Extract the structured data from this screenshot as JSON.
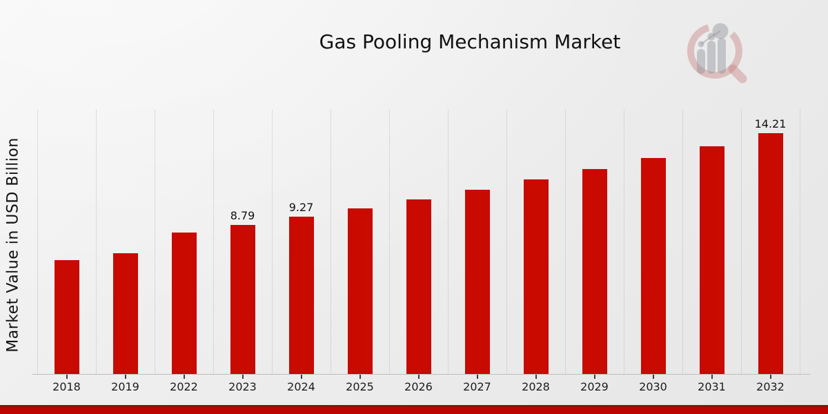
{
  "title": "Gas Pooling Mechanism Market",
  "y_axis_label": "Market Value in USD Billion",
  "watermark": {
    "icon": "magnifier-bar-chart-logo"
  },
  "colors": {
    "bar": "#c80a01",
    "footer_bar": "#bc0400",
    "footer_accent_line": "#8e1009",
    "background": "#ececec",
    "gridline": "#c3c3c3",
    "logo_ring_pink": "#d9b4b4",
    "logo_gray": "#b9babf"
  },
  "chart_data": {
    "type": "bar",
    "title": "Gas Pooling Mechanism Market",
    "xlabel": "",
    "ylabel": "Market Value in USD Billion",
    "categories": [
      "2018",
      "2019",
      "2022",
      "2023",
      "2024",
      "2025",
      "2026",
      "2027",
      "2028",
      "2029",
      "2030",
      "2031",
      "2032"
    ],
    "values": [
      6.74,
      7.11,
      8.34,
      8.79,
      9.27,
      9.78,
      10.31,
      10.87,
      11.47,
      12.09,
      12.75,
      13.45,
      14.21
    ],
    "data_labels": [
      "",
      "",
      "",
      "8.79",
      "9.27",
      "",
      "",
      "",
      "",
      "",
      "",
      "",
      "14.21"
    ],
    "ylim": [
      0,
      15.6
    ],
    "grid": "vertical-dotted",
    "legend": "none",
    "bar_color": "#c80a01"
  }
}
